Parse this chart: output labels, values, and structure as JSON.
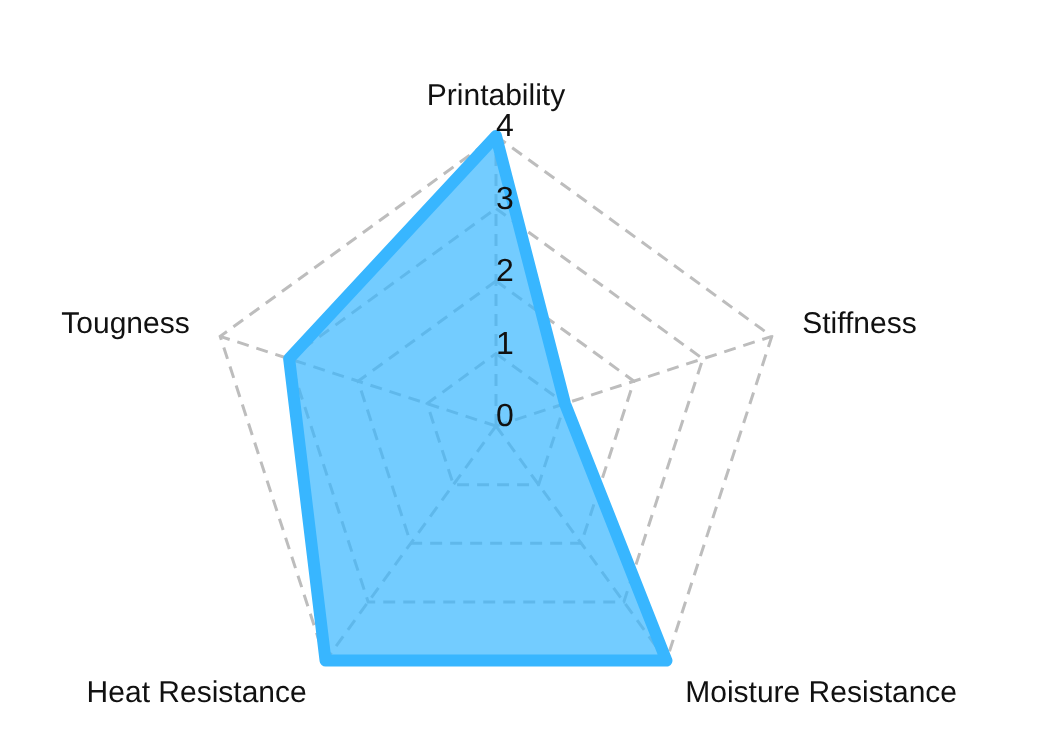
{
  "chart_data": {
    "type": "radar",
    "categories": [
      "Printability",
      "Stiffness",
      "Moisture Resistance",
      "Heat Resistance",
      "Tougness"
    ],
    "series": [
      {
        "color": "#38b6ff",
        "values": [
          4,
          1,
          4,
          4,
          3
        ]
      }
    ],
    "ylim": [
      0,
      4
    ],
    "yticks": [
      0,
      1,
      2,
      3,
      4
    ],
    "grid": true,
    "legend": false
  }
}
